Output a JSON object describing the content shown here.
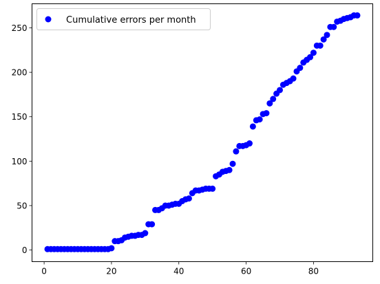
{
  "chart_data": {
    "type": "scatter",
    "title": "",
    "xlabel": "",
    "ylabel": "",
    "xlim": [
      -3.6,
      97.6
    ],
    "ylim": [
      -13.1,
      277.1
    ],
    "xticks": [
      0,
      20,
      40,
      60,
      80
    ],
    "yticks": [
      0,
      50,
      100,
      150,
      200,
      250
    ],
    "grid": false,
    "legend_position": "top-left",
    "series": [
      {
        "name": "Cumulative errors per month",
        "color": "#0000ff",
        "marker": "circle",
        "x": [
          1,
          2,
          3,
          4,
          5,
          6,
          7,
          8,
          9,
          10,
          11,
          12,
          13,
          14,
          15,
          16,
          17,
          18,
          19,
          20,
          21,
          22,
          23,
          24,
          25,
          26,
          27,
          28,
          29,
          30,
          31,
          32,
          33,
          34,
          35,
          36,
          37,
          38,
          39,
          40,
          41,
          42,
          43,
          44,
          45,
          46,
          47,
          48,
          49,
          50,
          51,
          52,
          53,
          54,
          55,
          56,
          57,
          58,
          59,
          60,
          61,
          62,
          63,
          64,
          65,
          66,
          67,
          68,
          69,
          70,
          71,
          72,
          73,
          74,
          75,
          76,
          77,
          78,
          79,
          80,
          81,
          82,
          83,
          84,
          85,
          86,
          87,
          88,
          89,
          90,
          91,
          92,
          93
        ],
        "y": [
          1,
          1,
          1,
          1,
          1,
          1,
          1,
          1,
          1,
          1,
          1,
          1,
          1,
          1,
          1,
          1,
          1,
          1,
          1,
          2,
          10,
          10,
          11,
          14,
          15,
          16,
          16,
          17,
          17,
          19,
          29,
          29,
          45,
          45,
          47,
          50,
          50,
          51,
          52,
          52,
          55,
          57,
          58,
          64,
          67,
          67,
          68,
          69,
          69,
          69,
          83,
          85,
          88,
          89,
          90,
          97,
          111,
          117,
          117,
          118,
          120,
          139,
          146,
          147,
          153,
          154,
          165,
          170,
          176,
          180,
          186,
          188,
          190,
          193,
          201,
          205,
          211,
          214,
          217,
          222,
          230,
          230,
          237,
          242,
          251,
          251,
          257,
          258,
          260,
          261,
          262,
          264,
          264
        ]
      }
    ]
  }
}
